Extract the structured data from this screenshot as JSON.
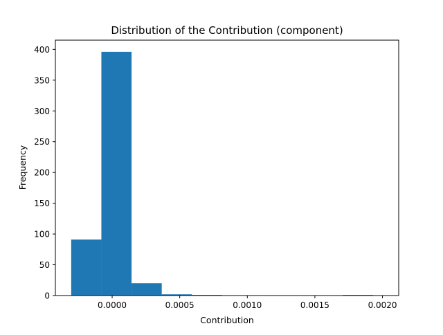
{
  "chart_data": {
    "type": "histogram",
    "title": "Distribution of the Contribution (component)",
    "xlabel": "Contribution",
    "ylabel": "Frequency",
    "xlim": [
      -0.00042,
      0.00212
    ],
    "ylim": [
      0,
      415
    ],
    "xticks": [
      0.0,
      0.0005,
      0.001,
      0.0015,
      0.002
    ],
    "xtick_labels": [
      "0.0000",
      "0.0005",
      "0.0010",
      "0.0015",
      "0.0020"
    ],
    "yticks": [
      0,
      50,
      100,
      150,
      200,
      250,
      300,
      350,
      400
    ],
    "ytick_labels": [
      "0",
      "50",
      "100",
      "150",
      "200",
      "250",
      "300",
      "350",
      "400"
    ],
    "bins": [
      {
        "x0": -0.000303,
        "x1": -7.97e-05,
        "count": 91
      },
      {
        "x0": -7.97e-05,
        "x1": 0.0001436,
        "count": 396
      },
      {
        "x0": 0.0001436,
        "x1": 0.0003669,
        "count": 20
      },
      {
        "x0": 0.0003669,
        "x1": 0.0005902,
        "count": 2
      },
      {
        "x0": 0.0005902,
        "x1": 0.0008135,
        "count": 1
      },
      {
        "x0": 0.0008135,
        "x1": 0.0010368,
        "count": 0
      },
      {
        "x0": 0.0010368,
        "x1": 0.0012601,
        "count": 0
      },
      {
        "x0": 0.0012601,
        "x1": 0.0014834,
        "count": 0
      },
      {
        "x0": 0.0014834,
        "x1": 0.0017067,
        "count": 0
      },
      {
        "x0": 0.0017067,
        "x1": 0.00193,
        "count": 1
      }
    ],
    "bar_color": "#1f77b4",
    "grid": false
  }
}
